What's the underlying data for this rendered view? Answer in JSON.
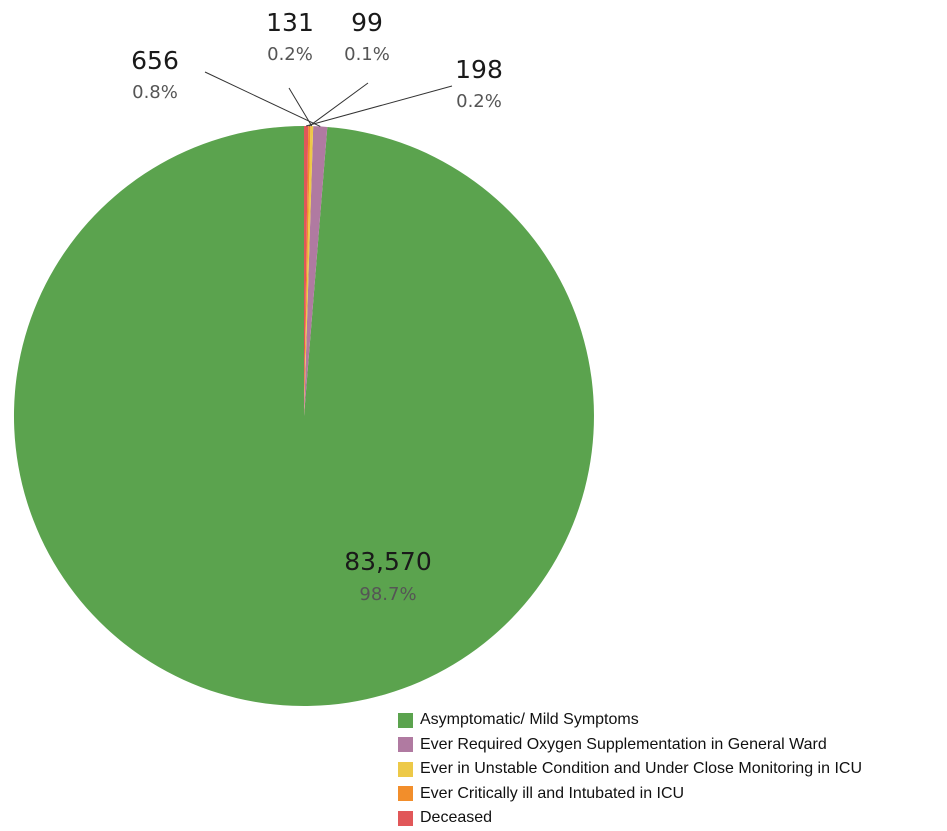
{
  "chart_data": {
    "type": "pie",
    "start_angle_deg": 0,
    "direction": "counterclockwise",
    "slices": [
      {
        "label": "Asymptomatic/ Mild Symptoms",
        "value": 83570,
        "value_text": "83,570",
        "percent_text": "98.7%",
        "color": "#5ba34e"
      },
      {
        "label": "Ever Required Oxygen Supplementation in General Ward",
        "value": 656,
        "value_text": "656",
        "percent_text": "0.8%",
        "color": "#b07aa1"
      },
      {
        "label": "Ever in Unstable Condition and Under Close Monitoring in ICU",
        "value": 131,
        "value_text": "131",
        "percent_text": "0.2%",
        "color": "#edc948"
      },
      {
        "label": "Ever Critically ill and Intubated in ICU",
        "value": 99,
        "value_text": "99",
        "percent_text": "0.1%",
        "color": "#f28e2b"
      },
      {
        "label": "Deceased",
        "value": 198,
        "value_text": "198",
        "percent_text": "0.2%",
        "color": "#e15759"
      }
    ]
  }
}
